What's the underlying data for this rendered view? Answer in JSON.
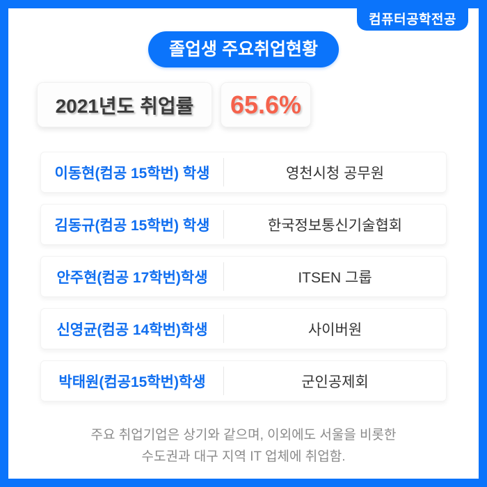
{
  "page": {
    "major_badge": "컴퓨터공학전공",
    "title": "졸업생 주요취업현황",
    "footnote_line1": "주요 취업기업은 상기와 같으며, 이외에도 서울을 비롯한",
    "footnote_line2": "수도권과 대구 지역 IT 업체에 취업함."
  },
  "stats": {
    "year_label": "2021년도 취업률",
    "employment_rate": "65.6%"
  },
  "employment_rows": [
    {
      "student": "이동현(컴공 15학번) 학생",
      "employer": "영천시청 공무원"
    },
    {
      "student": "김동규(컴공 15학번) 학생",
      "employer": "한국정보통신기술협회"
    },
    {
      "student": "안주현(컴공 17학번)학생",
      "employer": "ITSEN 그룹"
    },
    {
      "student": "신영균(컴공 14학번)학생",
      "employer": "사이버원"
    },
    {
      "student": "박태원(컴공15학번)학생",
      "employer": "군인공제회"
    }
  ],
  "colors": {
    "primary_blue": "#0b74fb",
    "student_name_blue": "#0f6ef0",
    "rate_coral": "#f5624c",
    "stat_label_dark": "#3a3a3a",
    "employer_text": "#333333",
    "footnote_gray": "#8a8a8a",
    "divider_gray": "#e7e7e7"
  }
}
